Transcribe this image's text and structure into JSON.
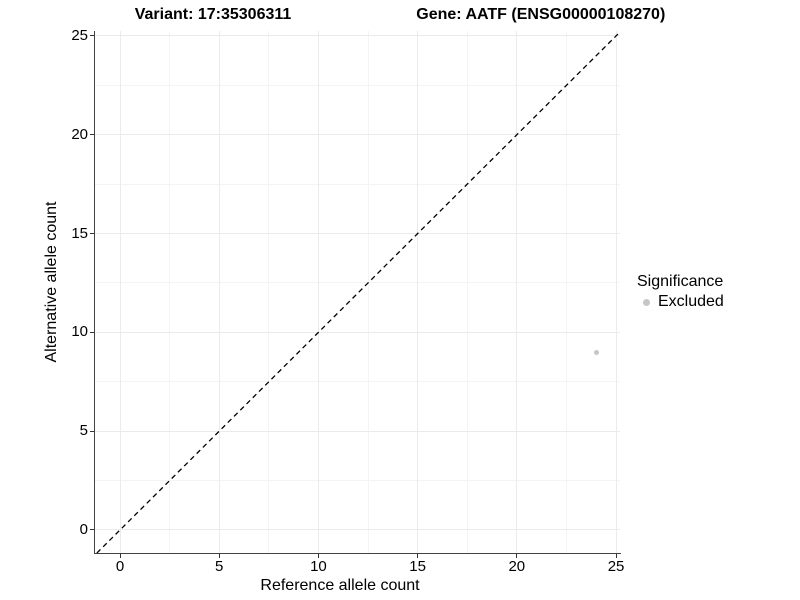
{
  "chart_data": {
    "type": "scatter",
    "titles": [
      "Variant: 17:35306311",
      "Gene: AATF (ENSG00000108270)"
    ],
    "xlabel": "Reference allele count",
    "ylabel": "Alternative allele count",
    "xlim": [
      -1.26,
      25.2
    ],
    "ylim": [
      -1.164,
      25.25
    ],
    "xticks": [
      0,
      5,
      10,
      15,
      20,
      25
    ],
    "yticks": [
      0,
      5,
      10,
      15,
      20,
      25
    ],
    "minor_xticks": [
      2.5,
      7.5,
      12.5,
      17.5,
      22.5
    ],
    "minor_yticks": [
      2.5,
      7.5,
      12.5,
      17.5,
      22.5
    ],
    "grid": "major and minor, light gray on white",
    "series": [
      {
        "name": "Excluded",
        "color": "#c6c6c6",
        "points": [
          {
            "x": 24,
            "y": 9
          }
        ]
      }
    ],
    "reference_line": {
      "equation": "y = x",
      "style": "dashed",
      "color": "#000000"
    },
    "legend": {
      "title": "Significance",
      "position": "right",
      "items": [
        {
          "label": "Excluded",
          "color": "#c6c6c6"
        }
      ]
    }
  },
  "colors": {
    "background": "#ffffff",
    "grid_major": "#ebebeb",
    "grid_minor": "#f4f4f4",
    "axis_line": "#424242",
    "tick_mark": "#333333",
    "text": "#000000",
    "point": "#c6c6c6"
  }
}
